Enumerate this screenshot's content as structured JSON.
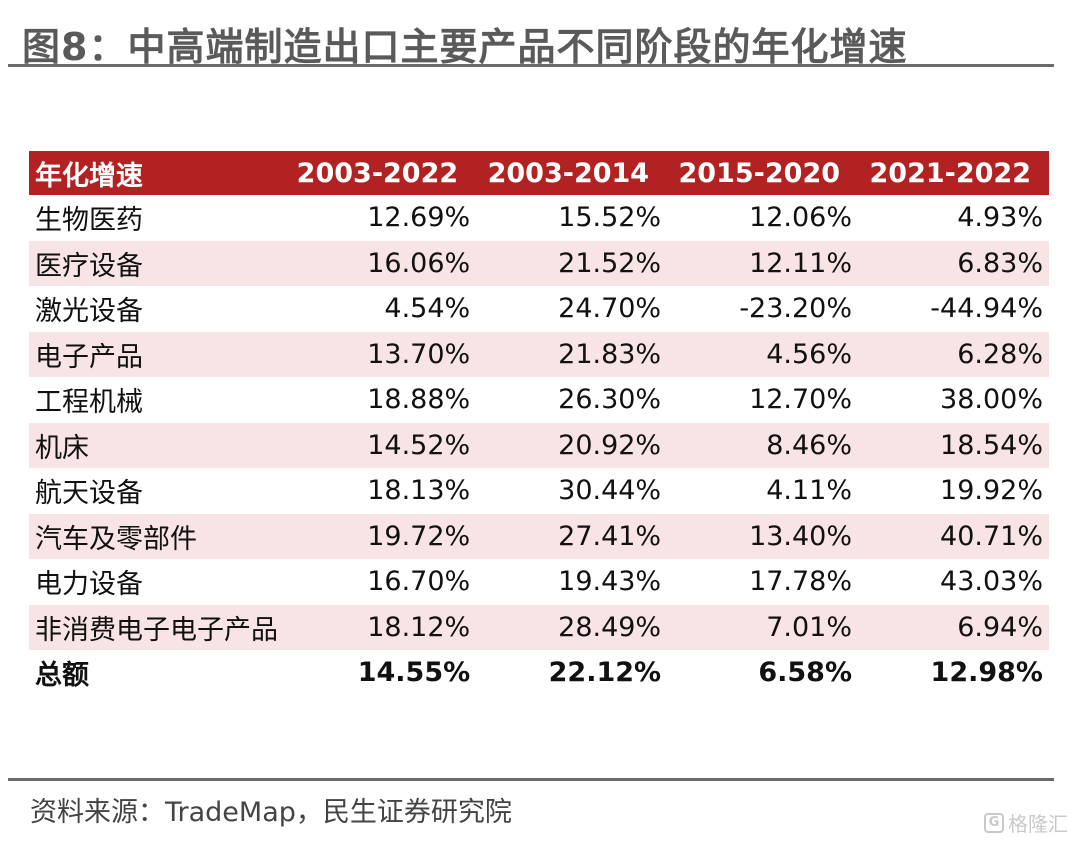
{
  "title": "图8：中高端制造出口主要产品不同阶段的年化增速",
  "table": {
    "headers": [
      "年化增速",
      "2003-2022",
      "2003-2014",
      "2015-2020",
      "2021-2022"
    ],
    "rows": [
      {
        "label": "生物医药",
        "values": [
          "12.69%",
          "15.52%",
          "12.06%",
          "4.93%"
        ]
      },
      {
        "label": "医疗设备",
        "values": [
          "16.06%",
          "21.52%",
          "12.11%",
          "6.83%"
        ]
      },
      {
        "label": "激光设备",
        "values": [
          "4.54%",
          "24.70%",
          "-23.20%",
          "-44.94%"
        ]
      },
      {
        "label": "电子产品",
        "values": [
          "13.70%",
          "21.83%",
          "4.56%",
          "6.28%"
        ]
      },
      {
        "label": "工程机械",
        "values": [
          "18.88%",
          "26.30%",
          "12.70%",
          "38.00%"
        ]
      },
      {
        "label": "机床",
        "values": [
          "14.52%",
          "20.92%",
          "8.46%",
          "18.54%"
        ]
      },
      {
        "label": "航天设备",
        "values": [
          "18.13%",
          "30.44%",
          "4.11%",
          "19.92%"
        ]
      },
      {
        "label": "汽车及零部件",
        "values": [
          "19.72%",
          "27.41%",
          "13.40%",
          "40.71%"
        ]
      },
      {
        "label": "电力设备",
        "values": [
          "16.70%",
          "19.43%",
          "17.78%",
          "43.03%"
        ]
      },
      {
        "label": "非消费电子电子产品",
        "values": [
          "18.12%",
          "28.49%",
          "7.01%",
          "6.94%"
        ]
      },
      {
        "label": "总额",
        "values": [
          "14.55%",
          "22.12%",
          "6.58%",
          "12.98%"
        ]
      }
    ]
  },
  "source": "资料来源：TradeMap，民生证券研究院",
  "watermark": {
    "logo": "G",
    "text": "格隆汇"
  },
  "colors": {
    "header_bg": "#b22222",
    "stripe_bg": "#f8e4e4",
    "title": "#5a5a5a"
  }
}
